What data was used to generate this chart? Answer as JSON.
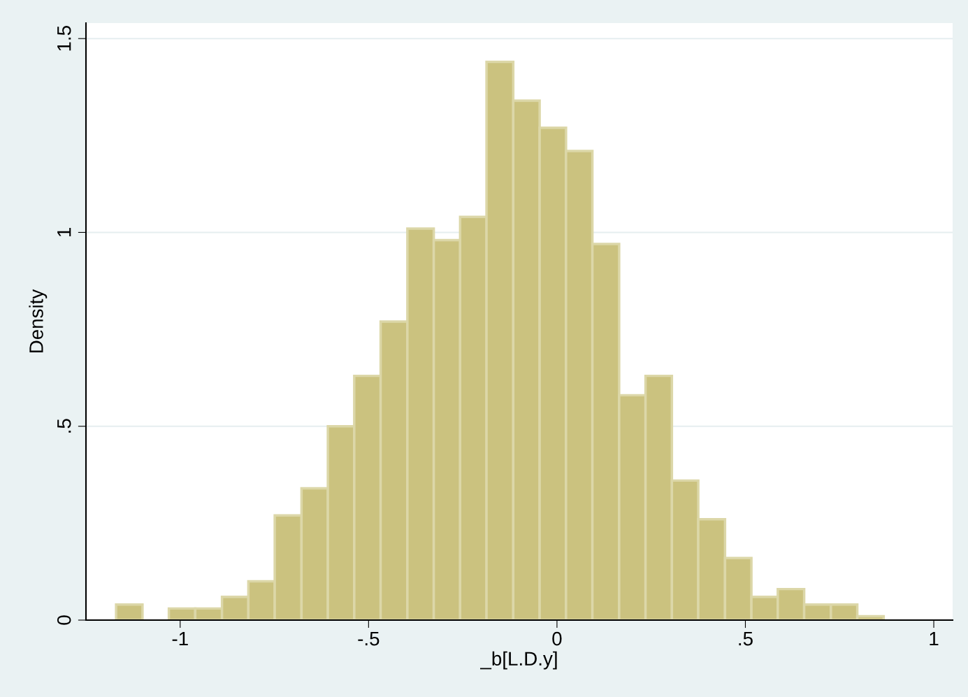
{
  "chart_data": {
    "type": "histogram",
    "xlabel": "_b[L.D.y]",
    "ylabel": "Density",
    "bins": [
      -1.17,
      -1.1,
      -1.03,
      -0.96,
      -0.889,
      -0.819,
      -0.749,
      -0.678,
      -0.608,
      -0.538,
      -0.468,
      -0.397,
      -0.327,
      -0.257,
      -0.187,
      -0.116,
      -0.046,
      0.024,
      0.094,
      0.165,
      0.235,
      0.305,
      0.375,
      0.446,
      0.516,
      0.586,
      0.656,
      0.727,
      0.797,
      0.867
    ],
    "values": [
      0.04,
      0,
      0.03,
      0.03,
      0.06,
      0.1,
      0.27,
      0.34,
      0.5,
      0.63,
      0.77,
      1.01,
      0.98,
      1.04,
      1.44,
      1.34,
      1.27,
      1.21,
      0.97,
      0.58,
      0.63,
      0.36,
      0.26,
      0.16,
      0.06,
      0.08,
      0.04,
      0.04,
      0.01
    ],
    "color": "#cbc27f",
    "xlim": [
      -1.25,
      1.05
    ],
    "ylim": [
      0,
      1.54
    ],
    "xticks": [
      -1,
      {
        "value": -0.5,
        "label": "-.5"
      },
      0,
      {
        "value": 0.5,
        "label": ".5"
      },
      1
    ],
    "yticks": [
      0,
      {
        "value": 0.5,
        "label": ".5"
      },
      1,
      {
        "value": 1.5,
        "label": "1.5"
      }
    ],
    "grid": "y",
    "legend": false
  }
}
